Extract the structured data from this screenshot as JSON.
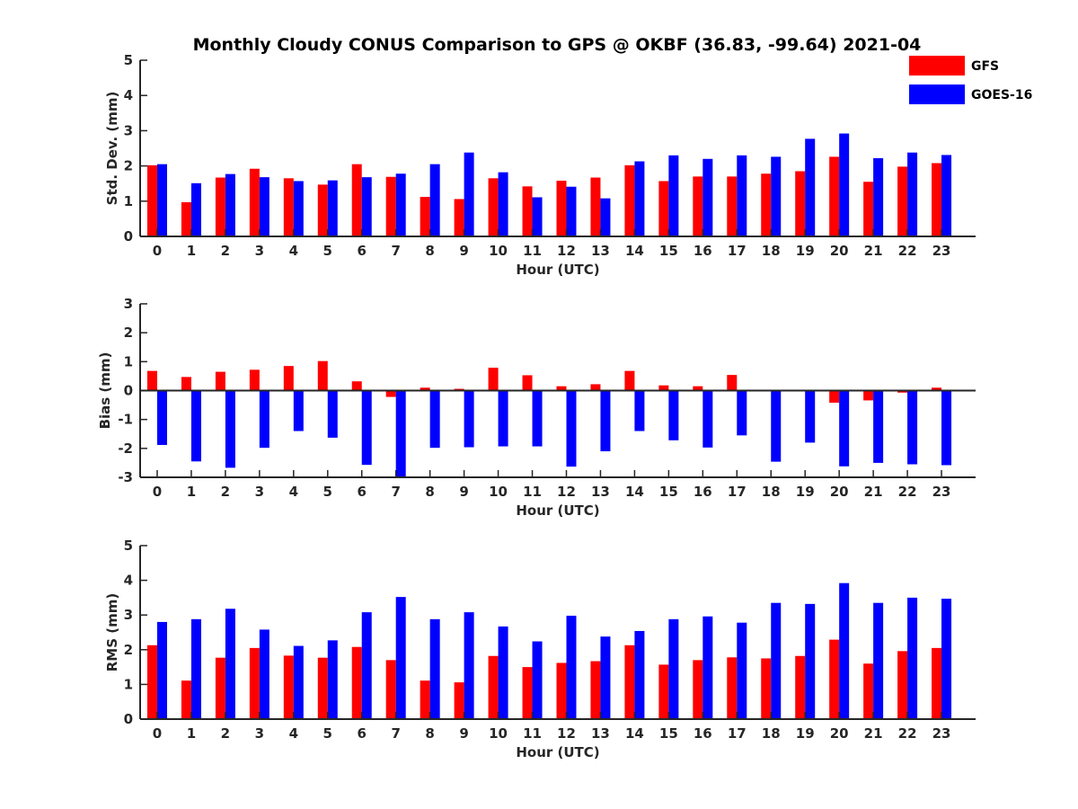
{
  "title": "Monthly Cloudy CONUS Comparison to GPS @ OKBF (36.83, -99.64) 2021-04",
  "colors": {
    "GFS": "#ff0000",
    "GOES-16": "#0000ff"
  },
  "legend": {
    "position": "top-right",
    "entries": [
      "GFS",
      "GOES-16"
    ]
  },
  "chart_data": [
    {
      "type": "bar",
      "categories": [
        "0",
        "1",
        "2",
        "3",
        "4",
        "5",
        "6",
        "7",
        "8",
        "9",
        "10",
        "11",
        "12",
        "13",
        "14",
        "15",
        "16",
        "17",
        "18",
        "19",
        "20",
        "21",
        "22",
        "23"
      ],
      "xlabel": "Hour (UTC)",
      "ylabel": "Std. Dev. (mm)",
      "ylim": [
        0,
        5
      ],
      "yticks": [
        0,
        1,
        2,
        3,
        4,
        5
      ],
      "series": [
        {
          "name": "GFS",
          "values": [
            2.02,
            0.97,
            1.67,
            1.92,
            1.65,
            1.47,
            2.05,
            1.69,
            1.12,
            1.06,
            1.65,
            1.42,
            1.58,
            1.67,
            2.02,
            1.57,
            1.7,
            1.7,
            1.78,
            1.85,
            2.26,
            1.55,
            1.98,
            2.08
          ]
        },
        {
          "name": "GOES-16",
          "values": [
            2.05,
            1.51,
            1.77,
            1.68,
            1.57,
            1.59,
            1.68,
            1.78,
            2.05,
            2.38,
            1.82,
            1.11,
            1.41,
            1.08,
            2.13,
            2.3,
            2.2,
            2.3,
            2.26,
            2.77,
            2.92,
            2.22,
            2.38,
            2.31
          ]
        }
      ]
    },
    {
      "type": "bar",
      "categories": [
        "0",
        "1",
        "2",
        "3",
        "4",
        "5",
        "6",
        "7",
        "8",
        "9",
        "10",
        "11",
        "12",
        "13",
        "14",
        "15",
        "16",
        "17",
        "18",
        "19",
        "20",
        "21",
        "22",
        "23"
      ],
      "xlabel": "Hour (UTC)",
      "ylabel": "Bias (mm)",
      "ylim": [
        -3,
        3
      ],
      "yticks": [
        -3,
        -2,
        -1,
        0,
        1,
        2,
        3
      ],
      "zero_line": true,
      "series": [
        {
          "name": "GFS",
          "values": [
            0.68,
            0.47,
            0.65,
            0.72,
            0.85,
            1.02,
            0.32,
            -0.22,
            0.1,
            0.06,
            0.79,
            0.53,
            0.15,
            0.22,
            0.68,
            0.18,
            0.15,
            0.54,
            -0.03,
            0.0,
            -0.42,
            -0.34,
            -0.07,
            0.1
          ]
        },
        {
          "name": "GOES-16",
          "values": [
            -1.88,
            -2.45,
            -2.67,
            -1.98,
            -1.4,
            -1.63,
            -2.57,
            -3.0,
            -1.98,
            -1.96,
            -1.93,
            -1.93,
            -2.63,
            -2.1,
            -1.4,
            -1.72,
            -1.97,
            -1.55,
            -2.46,
            -1.8,
            -2.62,
            -2.5,
            -2.55,
            -2.58
          ]
        }
      ]
    },
    {
      "type": "bar",
      "categories": [
        "0",
        "1",
        "2",
        "3",
        "4",
        "5",
        "6",
        "7",
        "8",
        "9",
        "10",
        "11",
        "12",
        "13",
        "14",
        "15",
        "16",
        "17",
        "18",
        "19",
        "20",
        "21",
        "22",
        "23"
      ],
      "xlabel": "Hour (UTC)",
      "ylabel": "RMS (mm)",
      "ylim": [
        0,
        5
      ],
      "yticks": [
        0,
        1,
        2,
        3,
        4,
        5
      ],
      "series": [
        {
          "name": "GFS",
          "values": [
            2.13,
            1.11,
            1.77,
            2.05,
            1.83,
            1.77,
            2.08,
            1.7,
            1.11,
            1.06,
            1.82,
            1.5,
            1.62,
            1.67,
            2.13,
            1.57,
            1.7,
            1.78,
            1.75,
            1.82,
            2.29,
            1.6,
            1.96,
            2.05
          ]
        },
        {
          "name": "GOES-16",
          "values": [
            2.8,
            2.88,
            3.18,
            2.58,
            2.11,
            2.27,
            3.08,
            3.52,
            2.88,
            3.08,
            2.67,
            2.24,
            2.98,
            2.38,
            2.54,
            2.88,
            2.96,
            2.78,
            3.35,
            3.32,
            3.92,
            3.35,
            3.5,
            3.47
          ]
        }
      ]
    }
  ]
}
